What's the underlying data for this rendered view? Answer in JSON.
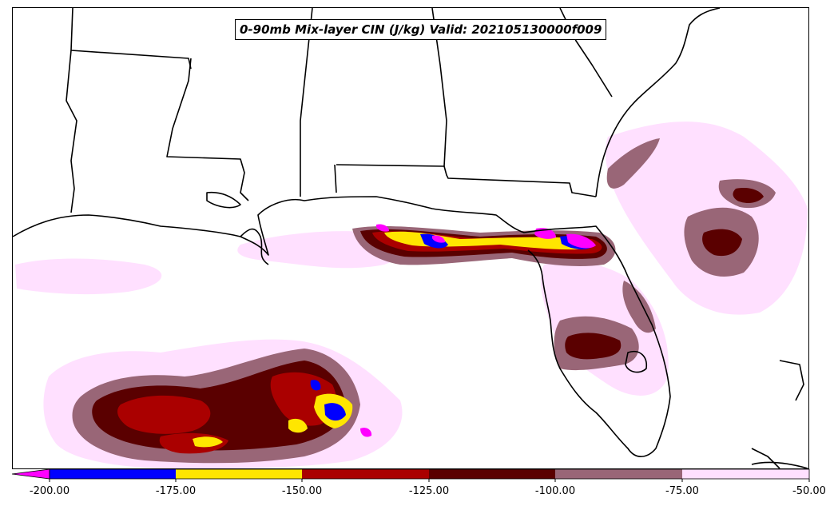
{
  "title": "0-90mb Mix-layer CIN (J/kg) Valid: 202105130000f009",
  "legend": {
    "colors": {
      "extend_low": "#ff00ff",
      "-200_to_-175": "#0000ff",
      "-175_to_-150": "#ffe600",
      "-150_to_-125": "#aa0000",
      "-125_to_-100": "#5a0000",
      "-100_to_-75": "#996677",
      "-75_to_-50": "#ffe0ff"
    },
    "tick_labels": [
      "-200.00",
      "-175.00",
      "-150.00",
      "-125.00",
      "-100.00",
      "-75.00",
      "-50.00"
    ]
  },
  "map": {
    "region": "Southeastern United States and Gulf of Mexico",
    "boundary_color": "#000000"
  }
}
